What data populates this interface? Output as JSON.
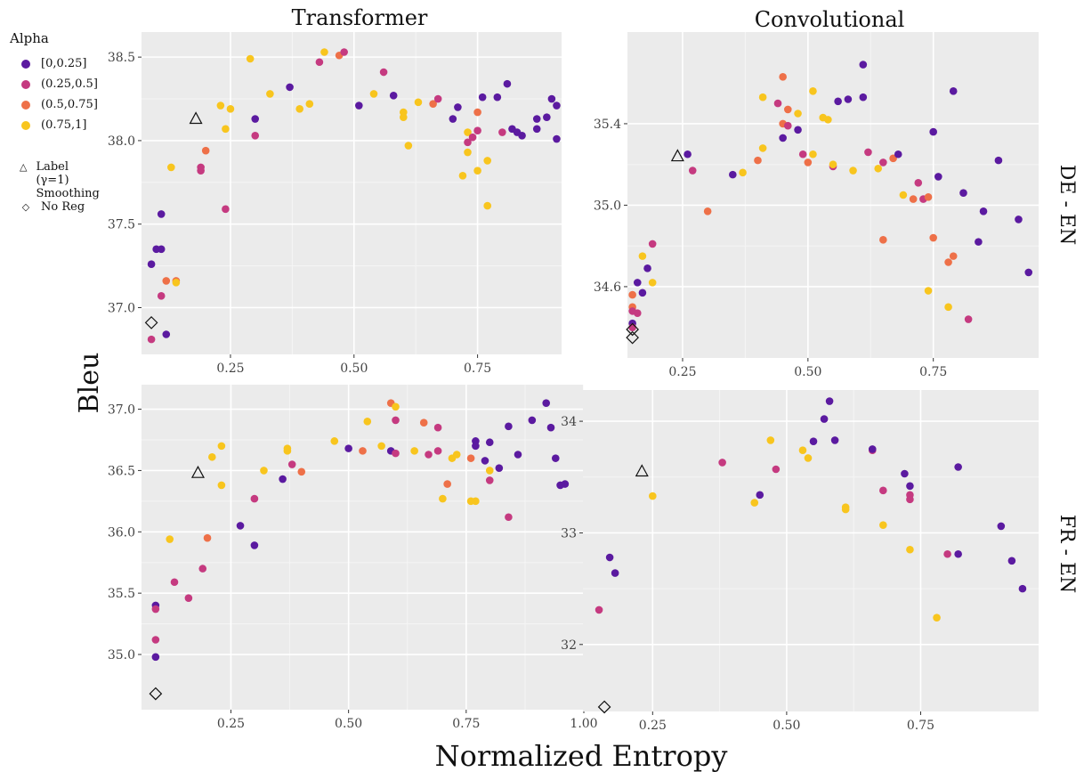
{
  "legend": {
    "alpha_title": "Alpha",
    "alpha_items": [
      {
        "label": "[0,0.25]",
        "color": "#5b1aa0"
      },
      {
        "label": "(0.25,0.5]",
        "color": "#c53a80"
      },
      {
        "label": "(0.5,0.75]",
        "color": "#ee7048"
      },
      {
        "label": "(0.75,1]",
        "color": "#f8c51e"
      }
    ],
    "reg_items": [
      {
        "label": "Label (γ=1) Smoothing",
        "icon": "triangle-icon"
      },
      {
        "label": "No Reg",
        "icon": "diamond-icon"
      }
    ]
  },
  "labels": {
    "ylabel": "Bleu",
    "xlabel": "Normalized Entropy",
    "col1": "Transformer",
    "col2": "Convolutional",
    "row1": "DE - EN",
    "row2": "FR - EN"
  },
  "chart_data": [
    {
      "type": "scatter",
      "title": "Transformer",
      "row": "DE - EN",
      "xlim": [
        0.07,
        0.92
      ],
      "ylim": [
        36.72,
        38.65
      ],
      "xticks": [
        0.25,
        0.5,
        0.75
      ],
      "yticks": [
        37.0,
        37.5,
        38.0,
        38.5
      ],
      "points": [
        [
          0.09,
          37.26,
          0
        ],
        [
          0.1,
          37.35,
          0
        ],
        [
          0.11,
          37.56,
          0
        ],
        [
          0.11,
          37.35,
          0
        ],
        [
          0.11,
          37.07,
          1
        ],
        [
          0.12,
          36.84,
          0
        ],
        [
          0.09,
          36.81,
          1
        ],
        [
          0.12,
          37.16,
          2
        ],
        [
          0.14,
          37.16,
          2
        ],
        [
          0.14,
          37.15,
          3
        ],
        [
          0.13,
          37.84,
          3
        ],
        [
          0.19,
          37.82,
          1
        ],
        [
          0.19,
          37.84,
          1
        ],
        [
          0.2,
          37.94,
          2
        ],
        [
          0.23,
          38.21,
          3
        ],
        [
          0.24,
          38.07,
          3
        ],
        [
          0.25,
          38.19,
          3
        ],
        [
          0.24,
          37.59,
          1
        ],
        [
          0.29,
          38.49,
          3
        ],
        [
          0.3,
          38.13,
          0
        ],
        [
          0.3,
          38.03,
          1
        ],
        [
          0.33,
          38.28,
          3
        ],
        [
          0.37,
          38.32,
          0
        ],
        [
          0.39,
          38.19,
          3
        ],
        [
          0.41,
          38.22,
          3
        ],
        [
          0.43,
          38.47,
          1
        ],
        [
          0.44,
          38.53,
          3
        ],
        [
          0.47,
          38.51,
          2
        ],
        [
          0.48,
          38.53,
          1
        ],
        [
          0.51,
          38.21,
          0
        ],
        [
          0.54,
          38.28,
          3
        ],
        [
          0.56,
          38.41,
          1
        ],
        [
          0.58,
          38.27,
          0
        ],
        [
          0.6,
          38.14,
          3
        ],
        [
          0.6,
          38.17,
          3
        ],
        [
          0.61,
          37.97,
          3
        ],
        [
          0.63,
          38.23,
          3
        ],
        [
          0.66,
          38.22,
          2
        ],
        [
          0.67,
          38.25,
          1
        ],
        [
          0.7,
          38.13,
          0
        ],
        [
          0.71,
          38.2,
          0
        ],
        [
          0.72,
          37.79,
          3
        ],
        [
          0.73,
          37.99,
          1
        ],
        [
          0.73,
          38.05,
          3
        ],
        [
          0.73,
          37.93,
          3
        ],
        [
          0.74,
          38.02,
          1
        ],
        [
          0.75,
          38.17,
          2
        ],
        [
          0.75,
          38.06,
          1
        ],
        [
          0.75,
          37.82,
          3
        ],
        [
          0.76,
          38.26,
          0
        ],
        [
          0.77,
          37.88,
          3
        ],
        [
          0.77,
          37.61,
          3
        ],
        [
          0.79,
          38.26,
          0
        ],
        [
          0.8,
          38.05,
          1
        ],
        [
          0.81,
          38.34,
          0
        ],
        [
          0.82,
          38.07,
          0
        ],
        [
          0.83,
          38.05,
          0
        ],
        [
          0.84,
          38.03,
          0
        ],
        [
          0.87,
          38.07,
          0
        ],
        [
          0.87,
          38.13,
          0
        ],
        [
          0.89,
          38.14,
          0
        ],
        [
          0.9,
          38.25,
          0
        ],
        [
          0.91,
          38.21,
          0
        ],
        [
          0.91,
          38.01,
          0
        ]
      ],
      "label_smoothing": [
        0.18,
        38.13
      ],
      "no_reg": [
        0.09,
        36.91
      ]
    },
    {
      "type": "scatter",
      "title": "Convolutional",
      "row": "DE - EN",
      "xlim": [
        0.14,
        0.96
      ],
      "ylim": [
        34.25,
        35.85
      ],
      "xticks": [
        0.25,
        0.5,
        0.75
      ],
      "yticks": [
        34.6,
        35.0,
        35.4
      ],
      "points": [
        [
          0.15,
          34.56,
          2
        ],
        [
          0.15,
          34.5,
          2
        ],
        [
          0.15,
          34.48,
          1
        ],
        [
          0.15,
          34.42,
          0
        ],
        [
          0.15,
          34.4,
          1
        ],
        [
          0.16,
          34.47,
          1
        ],
        [
          0.16,
          34.62,
          0
        ],
        [
          0.17,
          34.57,
          0
        ],
        [
          0.17,
          34.75,
          3
        ],
        [
          0.18,
          34.69,
          0
        ],
        [
          0.19,
          34.62,
          3
        ],
        [
          0.19,
          34.81,
          1
        ],
        [
          0.26,
          35.25,
          0
        ],
        [
          0.27,
          35.17,
          1
        ],
        [
          0.3,
          34.97,
          2
        ],
        [
          0.35,
          35.15,
          0
        ],
        [
          0.37,
          35.16,
          3
        ],
        [
          0.4,
          35.22,
          2
        ],
        [
          0.41,
          35.53,
          3
        ],
        [
          0.41,
          35.28,
          3
        ],
        [
          0.44,
          35.5,
          1
        ],
        [
          0.45,
          35.63,
          2
        ],
        [
          0.45,
          35.4,
          2
        ],
        [
          0.45,
          35.33,
          0
        ],
        [
          0.46,
          35.47,
          2
        ],
        [
          0.46,
          35.39,
          1
        ],
        [
          0.48,
          35.37,
          0
        ],
        [
          0.48,
          35.45,
          3
        ],
        [
          0.49,
          35.25,
          1
        ],
        [
          0.5,
          35.21,
          2
        ],
        [
          0.51,
          35.25,
          3
        ],
        [
          0.51,
          35.56,
          3
        ],
        [
          0.53,
          35.43,
          3
        ],
        [
          0.54,
          35.42,
          3
        ],
        [
          0.55,
          35.19,
          1
        ],
        [
          0.55,
          35.2,
          3
        ],
        [
          0.56,
          35.51,
          0
        ],
        [
          0.58,
          35.52,
          0
        ],
        [
          0.59,
          35.17,
          3
        ],
        [
          0.61,
          35.53,
          0
        ],
        [
          0.61,
          35.69,
          0
        ],
        [
          0.62,
          35.26,
          1
        ],
        [
          0.64,
          35.18,
          3
        ],
        [
          0.65,
          35.21,
          1
        ],
        [
          0.65,
          34.83,
          2
        ],
        [
          0.67,
          35.23,
          2
        ],
        [
          0.68,
          35.25,
          0
        ],
        [
          0.69,
          35.05,
          3
        ],
        [
          0.71,
          35.03,
          2
        ],
        [
          0.72,
          35.11,
          1
        ],
        [
          0.73,
          35.03,
          1
        ],
        [
          0.74,
          35.04,
          2
        ],
        [
          0.74,
          34.58,
          3
        ],
        [
          0.75,
          34.84,
          2
        ],
        [
          0.75,
          35.36,
          0
        ],
        [
          0.76,
          35.14,
          0
        ],
        [
          0.78,
          34.72,
          2
        ],
        [
          0.78,
          34.5,
          3
        ],
        [
          0.79,
          34.75,
          2
        ],
        [
          0.79,
          35.56,
          0
        ],
        [
          0.81,
          35.06,
          0
        ],
        [
          0.82,
          34.44,
          1
        ],
        [
          0.84,
          34.82,
          0
        ],
        [
          0.85,
          34.97,
          0
        ],
        [
          0.88,
          35.22,
          0
        ],
        [
          0.92,
          34.93,
          0
        ],
        [
          0.94,
          34.67,
          0
        ]
      ],
      "label_smoothing": [
        0.24,
        35.24
      ],
      "no_reg": [
        0.15,
        34.35
      ],
      "no_reg_extra": [
        0.15,
        34.39
      ]
    },
    {
      "type": "scatter",
      "title": "",
      "row": "FR - EN",
      "xlim": [
        0.06,
        1.0
      ],
      "ylim": [
        34.55,
        37.2
      ],
      "xticks": [
        0.25,
        0.5,
        0.75,
        1.0
      ],
      "yticks": [
        35.0,
        35.5,
        36.0,
        36.5,
        37.0
      ],
      "points": [
        [
          0.09,
          35.4,
          0
        ],
        [
          0.09,
          35.37,
          1
        ],
        [
          0.09,
          35.12,
          1
        ],
        [
          0.09,
          34.98,
          0
        ],
        [
          0.12,
          35.94,
          3
        ],
        [
          0.13,
          35.59,
          1
        ],
        [
          0.16,
          35.46,
          1
        ],
        [
          0.19,
          35.7,
          1
        ],
        [
          0.2,
          35.95,
          2
        ],
        [
          0.21,
          36.61,
          3
        ],
        [
          0.23,
          36.7,
          3
        ],
        [
          0.23,
          36.38,
          3
        ],
        [
          0.27,
          36.05,
          0
        ],
        [
          0.3,
          35.89,
          0
        ],
        [
          0.3,
          36.27,
          1
        ],
        [
          0.32,
          36.5,
          3
        ],
        [
          0.36,
          36.43,
          0
        ],
        [
          0.37,
          36.66,
          3
        ],
        [
          0.37,
          36.68,
          3
        ],
        [
          0.38,
          36.55,
          1
        ],
        [
          0.4,
          36.49,
          2
        ],
        [
          0.47,
          36.74,
          3
        ],
        [
          0.5,
          36.68,
          0
        ],
        [
          0.53,
          36.66,
          2
        ],
        [
          0.54,
          36.9,
          3
        ],
        [
          0.57,
          36.7,
          3
        ],
        [
          0.59,
          37.05,
          2
        ],
        [
          0.6,
          37.02,
          3
        ],
        [
          0.6,
          36.91,
          1
        ],
        [
          0.59,
          36.66,
          0
        ],
        [
          0.6,
          36.64,
          1
        ],
        [
          0.64,
          36.66,
          3
        ],
        [
          0.66,
          36.89,
          2
        ],
        [
          0.67,
          36.63,
          1
        ],
        [
          0.69,
          36.66,
          1
        ],
        [
          0.69,
          36.85,
          1
        ],
        [
          0.7,
          36.27,
          3
        ],
        [
          0.71,
          36.39,
          2
        ],
        [
          0.72,
          36.6,
          3
        ],
        [
          0.73,
          36.63,
          3
        ],
        [
          0.76,
          36.25,
          3
        ],
        [
          0.76,
          36.6,
          2
        ],
        [
          0.77,
          36.74,
          0
        ],
        [
          0.77,
          36.7,
          0
        ],
        [
          0.77,
          36.25,
          3
        ],
        [
          0.79,
          36.58,
          0
        ],
        [
          0.8,
          36.42,
          1
        ],
        [
          0.8,
          36.5,
          3
        ],
        [
          0.8,
          36.73,
          0
        ],
        [
          0.82,
          36.52,
          0
        ],
        [
          0.84,
          36.86,
          0
        ],
        [
          0.84,
          36.12,
          1
        ],
        [
          0.86,
          36.63,
          0
        ],
        [
          0.89,
          36.91,
          0
        ],
        [
          0.92,
          37.05,
          0
        ],
        [
          0.93,
          36.85,
          0
        ],
        [
          0.94,
          36.6,
          0
        ],
        [
          0.95,
          36.38,
          0
        ],
        [
          0.96,
          36.39,
          0
        ]
      ],
      "label_smoothing": [
        0.18,
        36.48
      ],
      "no_reg": [
        0.09,
        34.68
      ]
    },
    {
      "type": "scatter",
      "title": "",
      "row": "FR - EN",
      "xlim": [
        0.12,
        0.97
      ],
      "ylim": [
        31.4,
        34.28
      ],
      "xticks": [
        0.25,
        0.5,
        0.75
      ],
      "yticks": [
        32,
        33,
        34
      ],
      "points": [
        [
          0.15,
          32.31,
          1
        ],
        [
          0.17,
          32.78,
          0
        ],
        [
          0.18,
          32.64,
          0
        ],
        [
          0.25,
          33.33,
          3
        ],
        [
          0.38,
          33.63,
          1
        ],
        [
          0.44,
          33.27,
          3
        ],
        [
          0.45,
          33.34,
          0
        ],
        [
          0.47,
          33.83,
          3
        ],
        [
          0.48,
          33.57,
          1
        ],
        [
          0.53,
          33.74,
          3
        ],
        [
          0.54,
          33.67,
          3
        ],
        [
          0.55,
          33.82,
          0
        ],
        [
          0.57,
          34.02,
          0
        ],
        [
          0.58,
          34.18,
          0
        ],
        [
          0.59,
          33.83,
          0
        ],
        [
          0.61,
          33.23,
          3
        ],
        [
          0.61,
          33.21,
          3
        ],
        [
          0.66,
          33.74,
          1
        ],
        [
          0.66,
          33.75,
          0
        ],
        [
          0.68,
          33.38,
          1
        ],
        [
          0.68,
          33.07,
          3
        ],
        [
          0.72,
          33.53,
          0
        ],
        [
          0.73,
          33.42,
          0
        ],
        [
          0.73,
          33.34,
          1
        ],
        [
          0.73,
          33.3,
          1
        ],
        [
          0.73,
          32.85,
          3
        ],
        [
          0.78,
          32.24,
          3
        ],
        [
          0.8,
          32.81,
          1
        ],
        [
          0.82,
          32.81,
          0
        ],
        [
          0.82,
          33.59,
          0
        ],
        [
          0.9,
          33.06,
          0
        ],
        [
          0.92,
          32.75,
          0
        ],
        [
          0.94,
          32.5,
          0
        ]
      ],
      "label_smoothing": [
        0.23,
        33.55
      ],
      "no_reg": [
        0.16,
        31.44
      ]
    }
  ]
}
